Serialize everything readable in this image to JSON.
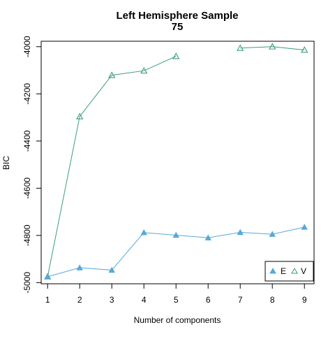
{
  "chart_data": {
    "type": "line",
    "title": "Left Hemisphere Sample",
    "subtitle": "75",
    "xlabel": "Number of components",
    "ylabel": "BIC",
    "x": [
      1,
      2,
      3,
      4,
      5,
      6,
      7,
      8,
      9
    ],
    "x_ticks": [
      1,
      2,
      3,
      4,
      5,
      6,
      7,
      8,
      9
    ],
    "y_ticks": [
      -5000,
      -4800,
      -4600,
      -4400,
      -4200,
      -4000
    ],
    "xlim": [
      0.8,
      9.3
    ],
    "ylim": [
      -5005,
      -3977
    ],
    "grid": false,
    "legend_position": "bottom-right",
    "series": [
      {
        "name": "E",
        "color": "#56a9d8",
        "marker": "filled-triangle",
        "values": [
          -4975,
          -4937,
          -4947,
          -4788,
          -4799,
          -4810,
          -4787,
          -4795,
          -4765
        ]
      },
      {
        "name": "V",
        "color": "#3a9c7c",
        "marker": "open-triangle",
        "values": [
          -4975,
          -4296,
          -4121,
          -4102,
          -4041,
          null,
          -4006,
          -4000,
          -4014
        ]
      }
    ]
  }
}
